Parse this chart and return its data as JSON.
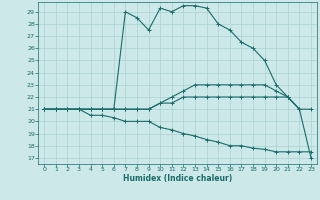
{
  "xlabel": "Humidex (Indice chaleur)",
  "xlim": [
    -0.5,
    23.5
  ],
  "ylim": [
    16.5,
    29.8
  ],
  "yticks": [
    17,
    18,
    19,
    20,
    21,
    22,
    23,
    24,
    25,
    26,
    27,
    28,
    29
  ],
  "xticks": [
    0,
    1,
    2,
    3,
    4,
    5,
    6,
    7,
    8,
    9,
    10,
    11,
    12,
    13,
    14,
    15,
    16,
    17,
    18,
    19,
    20,
    21,
    22,
    23
  ],
  "bg_color": "#cce8e8",
  "grid_color": "#aad0d0",
  "line_color": "#1a6b6b",
  "lines": [
    {
      "x": [
        0,
        1,
        2,
        3,
        4,
        5,
        6,
        7,
        8,
        9,
        10,
        11,
        12,
        13,
        14,
        15,
        16,
        17,
        18,
        19,
        20,
        21,
        22
      ],
      "y": [
        21,
        21,
        21,
        21,
        21,
        21,
        21,
        29,
        28.5,
        27.5,
        29.3,
        29.0,
        29.5,
        29.5,
        29.3,
        28.0,
        27.5,
        26.5,
        26.0,
        25.0,
        23.0,
        22.0,
        21.0
      ]
    },
    {
      "x": [
        0,
        1,
        2,
        3,
        4,
        5,
        6,
        7,
        8,
        9,
        10,
        11,
        12,
        13,
        14,
        15,
        16,
        17,
        18,
        19,
        20,
        21,
        22,
        23
      ],
      "y": [
        21,
        21,
        21,
        21,
        21,
        21,
        21,
        21,
        21,
        21,
        21.5,
        22,
        22.5,
        23,
        23,
        23,
        23,
        23,
        23,
        23,
        22.5,
        22,
        21,
        21
      ]
    },
    {
      "x": [
        0,
        1,
        2,
        3,
        4,
        5,
        6,
        7,
        8,
        9,
        10,
        11,
        12,
        13,
        14,
        15,
        16,
        17,
        18,
        19,
        20,
        21,
        22,
        23
      ],
      "y": [
        21,
        21,
        21,
        21,
        21,
        21,
        21,
        21,
        21,
        21,
        21.5,
        21.5,
        22,
        22,
        22,
        22,
        22,
        22,
        22,
        22,
        22,
        22,
        21,
        17
      ]
    },
    {
      "x": [
        0,
        1,
        2,
        3,
        4,
        5,
        6,
        7,
        8,
        9,
        10,
        11,
        12,
        13,
        14,
        15,
        16,
        17,
        18,
        19,
        20,
        21,
        22,
        23
      ],
      "y": [
        21,
        21,
        21,
        21,
        20.5,
        20.5,
        20.3,
        20.0,
        20.0,
        20.0,
        19.5,
        19.3,
        19.0,
        18.8,
        18.5,
        18.3,
        18.0,
        18.0,
        17.8,
        17.7,
        17.5,
        17.5,
        17.5,
        17.5
      ]
    }
  ]
}
